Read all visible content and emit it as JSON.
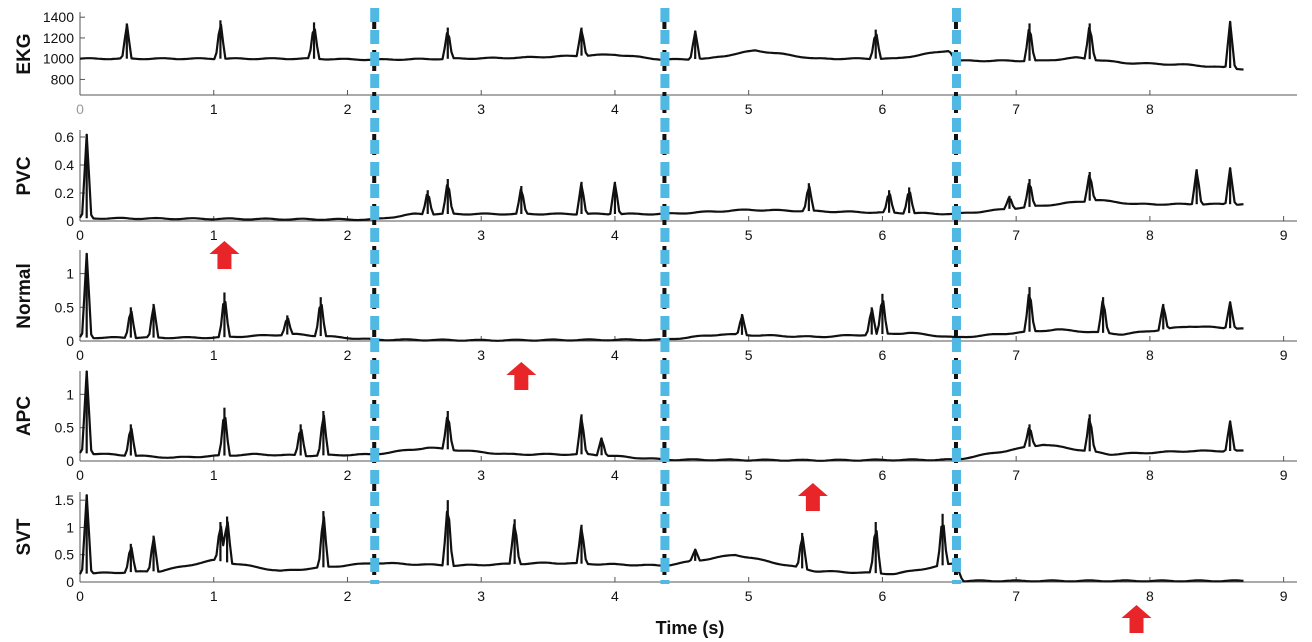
{
  "chart_data": {
    "type": "line",
    "xlabel": "Time (s)",
    "x_ticks": [
      "0",
      "1",
      "2",
      "3",
      "4",
      "5",
      "6",
      "7",
      "8",
      "9"
    ],
    "segment_boundaries_s": [
      2.2,
      4.37,
      6.55
    ],
    "arrow_times_s": [
      1.08,
      3.3,
      5.48,
      7.9
    ],
    "colors": {
      "trace": "#111111",
      "boundary_cyan": "#4fb8e3",
      "boundary_black": "#111111",
      "arrow": "#e8262a"
    },
    "panels": [
      {
        "id": "ekg",
        "ylabel": "EKG",
        "ylim": [
          650,
          1450
        ],
        "xlim": [
          0,
          9.1
        ],
        "y_ticks": [
          "1400",
          "1200",
          "1000",
          "800"
        ],
        "x_ticks_grey_first": true,
        "x_ticks_visible": [
          "0",
          "1",
          "2",
          "3",
          "4",
          "5",
          "6",
          "7",
          "8"
        ],
        "baseline": [
          [
            0,
            1000
          ],
          [
            0.8,
            1000
          ],
          [
            1.7,
            1000
          ],
          [
            2.2,
            990
          ],
          [
            2.8,
            1000
          ],
          [
            3.3,
            1010
          ],
          [
            4.0,
            1040
          ],
          [
            4.37,
            990
          ],
          [
            4.7,
            1000
          ],
          [
            5.05,
            1080
          ],
          [
            5.5,
            1000
          ],
          [
            6.1,
            1000
          ],
          [
            6.5,
            1080
          ],
          [
            6.55,
            980
          ],
          [
            7.2,
            980
          ],
          [
            7.45,
            1010
          ],
          [
            7.8,
            960
          ],
          [
            8.3,
            940
          ],
          [
            8.7,
            900
          ]
        ],
        "spikes": [
          [
            0.35,
            1340
          ],
          [
            1.05,
            1370
          ],
          [
            1.75,
            1350
          ],
          [
            2.75,
            1300
          ],
          [
            3.75,
            1300
          ],
          [
            4.6,
            1270
          ],
          [
            5.95,
            1280
          ],
          [
            7.1,
            1340
          ],
          [
            7.55,
            1340
          ],
          [
            8.6,
            1360
          ]
        ]
      },
      {
        "id": "pvc",
        "ylabel": "PVC",
        "ylim": [
          0,
          0.65
        ],
        "xlim": [
          0,
          9.1
        ],
        "y_ticks": [
          "0.6",
          "0.4",
          "0.2",
          "0"
        ],
        "x_ticks_visible": [
          "0",
          "1",
          "2",
          "3",
          "4",
          "5",
          "6",
          "7",
          "8",
          "9"
        ],
        "baseline": [
          [
            0,
            0.02
          ],
          [
            2.2,
            0.01
          ],
          [
            2.5,
            0.05
          ],
          [
            3.0,
            0.05
          ],
          [
            4.0,
            0.05
          ],
          [
            4.37,
            0.05
          ],
          [
            5.0,
            0.08
          ],
          [
            5.5,
            0.07
          ],
          [
            6.0,
            0.06
          ],
          [
            6.55,
            0.05
          ],
          [
            7.2,
            0.11
          ],
          [
            7.6,
            0.15
          ],
          [
            7.9,
            0.12
          ],
          [
            8.3,
            0.12
          ],
          [
            8.7,
            0.12
          ]
        ],
        "spikes": [
          [
            0.05,
            0.62
          ],
          [
            2.6,
            0.22
          ],
          [
            2.75,
            0.3
          ],
          [
            3.3,
            0.25
          ],
          [
            3.75,
            0.28
          ],
          [
            4.0,
            0.28
          ],
          [
            5.45,
            0.27
          ],
          [
            6.05,
            0.22
          ],
          [
            6.2,
            0.24
          ],
          [
            6.95,
            0.18
          ],
          [
            7.1,
            0.3
          ],
          [
            7.55,
            0.35
          ],
          [
            8.35,
            0.37
          ],
          [
            8.6,
            0.38
          ]
        ]
      },
      {
        "id": "normal",
        "ylabel": "Normal",
        "ylim": [
          0,
          1.35
        ],
        "xlim": [
          0,
          9.1
        ],
        "y_ticks": [
          "1",
          "0.5",
          "0"
        ],
        "x_ticks_visible": [
          "0",
          "1",
          "2",
          "3",
          "4",
          "5",
          "6",
          "7",
          "8",
          "9"
        ],
        "baseline": [
          [
            0,
            0.05
          ],
          [
            1.0,
            0.05
          ],
          [
            1.6,
            0.1
          ],
          [
            2.2,
            0.02
          ],
          [
            3.0,
            0.01
          ],
          [
            4.37,
            0.02
          ],
          [
            4.8,
            0.1
          ],
          [
            5.5,
            0.06
          ],
          [
            6.2,
            0.12
          ],
          [
            6.55,
            0.05
          ],
          [
            7.3,
            0.17
          ],
          [
            7.8,
            0.1
          ],
          [
            8.3,
            0.22
          ],
          [
            8.7,
            0.18
          ]
        ],
        "spikes": [
          [
            0.05,
            1.3
          ],
          [
            0.38,
            0.5
          ],
          [
            0.55,
            0.55
          ],
          [
            1.08,
            0.72
          ],
          [
            1.55,
            0.38
          ],
          [
            1.8,
            0.65
          ],
          [
            4.95,
            0.4
          ],
          [
            5.92,
            0.5
          ],
          [
            6.0,
            0.7
          ],
          [
            7.1,
            0.8
          ],
          [
            7.65,
            0.65
          ],
          [
            8.1,
            0.55
          ],
          [
            8.6,
            0.58
          ]
        ]
      },
      {
        "id": "apc",
        "ylabel": "APC",
        "ylim": [
          0,
          1.35
        ],
        "xlim": [
          0,
          9.1
        ],
        "y_ticks": [
          "1",
          "0.5",
          "0"
        ],
        "x_ticks_visible": [
          "0",
          "1",
          "2",
          "3",
          "4",
          "5",
          "6",
          "7",
          "8",
          "9"
        ],
        "baseline": [
          [
            0,
            0.12
          ],
          [
            0.7,
            0.05
          ],
          [
            1.3,
            0.1
          ],
          [
            1.7,
            0.08
          ],
          [
            2.2,
            0.1
          ],
          [
            2.6,
            0.2
          ],
          [
            3.2,
            0.1
          ],
          [
            3.8,
            0.1
          ],
          [
            4.37,
            0.02
          ],
          [
            5.5,
            0.01
          ],
          [
            6.55,
            0.02
          ],
          [
            7.2,
            0.25
          ],
          [
            7.7,
            0.1
          ],
          [
            8.3,
            0.15
          ],
          [
            8.7,
            0.15
          ]
        ],
        "spikes": [
          [
            0.05,
            1.35
          ],
          [
            0.38,
            0.55
          ],
          [
            1.08,
            0.8
          ],
          [
            1.65,
            0.55
          ],
          [
            1.82,
            0.75
          ],
          [
            2.75,
            0.75
          ],
          [
            3.75,
            0.7
          ],
          [
            3.9,
            0.35
          ],
          [
            7.1,
            0.55
          ],
          [
            7.55,
            0.7
          ],
          [
            8.6,
            0.6
          ]
        ]
      },
      {
        "id": "svt",
        "ylabel": "SVT",
        "ylim": [
          0,
          1.65
        ],
        "xlim": [
          0,
          9.1
        ],
        "y_ticks": [
          "1.5",
          "1",
          "0.5",
          "0"
        ],
        "x_ticks_visible": [
          "0",
          "1",
          "2",
          "3",
          "4",
          "5",
          "6",
          "7",
          "8",
          "9"
        ],
        "baseline": [
          [
            0,
            0.15
          ],
          [
            0.6,
            0.2
          ],
          [
            1.0,
            0.4
          ],
          [
            1.5,
            0.2
          ],
          [
            2.2,
            0.35
          ],
          [
            2.8,
            0.3
          ],
          [
            3.5,
            0.35
          ],
          [
            4.37,
            0.3
          ],
          [
            4.9,
            0.5
          ],
          [
            5.5,
            0.2
          ],
          [
            6.1,
            0.15
          ],
          [
            6.55,
            0.35
          ],
          [
            6.6,
            0.02
          ],
          [
            8.7,
            0.02
          ]
        ],
        "spikes": [
          [
            0.05,
            1.6
          ],
          [
            0.38,
            0.7
          ],
          [
            0.55,
            0.85
          ],
          [
            1.05,
            1.1
          ],
          [
            1.1,
            1.2
          ],
          [
            1.82,
            1.3
          ],
          [
            2.75,
            1.5
          ],
          [
            3.25,
            1.15
          ],
          [
            3.75,
            1.05
          ],
          [
            4.6,
            0.6
          ],
          [
            5.4,
            0.9
          ],
          [
            5.95,
            1.1
          ],
          [
            6.45,
            1.25
          ]
        ]
      }
    ]
  }
}
